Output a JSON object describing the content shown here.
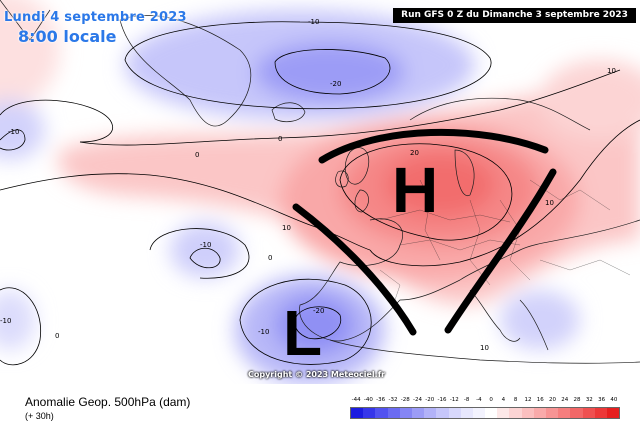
{
  "header": {
    "date": "Lundi 4 septembre 2023",
    "time": "8:00 locale",
    "run": "Run GFS 0 Z du Dimanche 3 septembre 2023"
  },
  "map": {
    "centers": [
      {
        "name": "high",
        "symbol": "H"
      },
      {
        "name": "low",
        "symbol": "L"
      }
    ],
    "contour_labels": [
      "-10",
      "-20",
      "-10",
      "0",
      "0",
      "10",
      "20",
      "10",
      "0",
      "-10",
      "-10",
      "-20",
      "-10",
      "0",
      "10",
      "10"
    ]
  },
  "copyright": "Copyright © 2023 Meteociel.fr",
  "footer": {
    "title": "Anomalie Geop. 500hPa (dam)",
    "lead_time": "(+ 30h)"
  },
  "legend": {
    "ticks": [
      "-44",
      "-40",
      "-36",
      "-32",
      "-28",
      "-24",
      "-20",
      "-16",
      "-12",
      "-8",
      "-4",
      "0",
      "4",
      "8",
      "12",
      "16",
      "20",
      "24",
      "28",
      "32",
      "36",
      "40"
    ],
    "colors": [
      "#1c1ce0",
      "#3636ea",
      "#5252f0",
      "#6b6bf2",
      "#8585f4",
      "#9c9cf6",
      "#b2b2f8",
      "#c6c6fa",
      "#d8d8fc",
      "#e7e7fd",
      "#f3f3fe",
      "#ffffff",
      "#fde8e8",
      "#fcd4d4",
      "#fbbfbf",
      "#f9aaaa",
      "#f79494",
      "#f57e7e",
      "#f26767",
      "#ef5050",
      "#ec3838",
      "#e61f1f"
    ]
  }
}
